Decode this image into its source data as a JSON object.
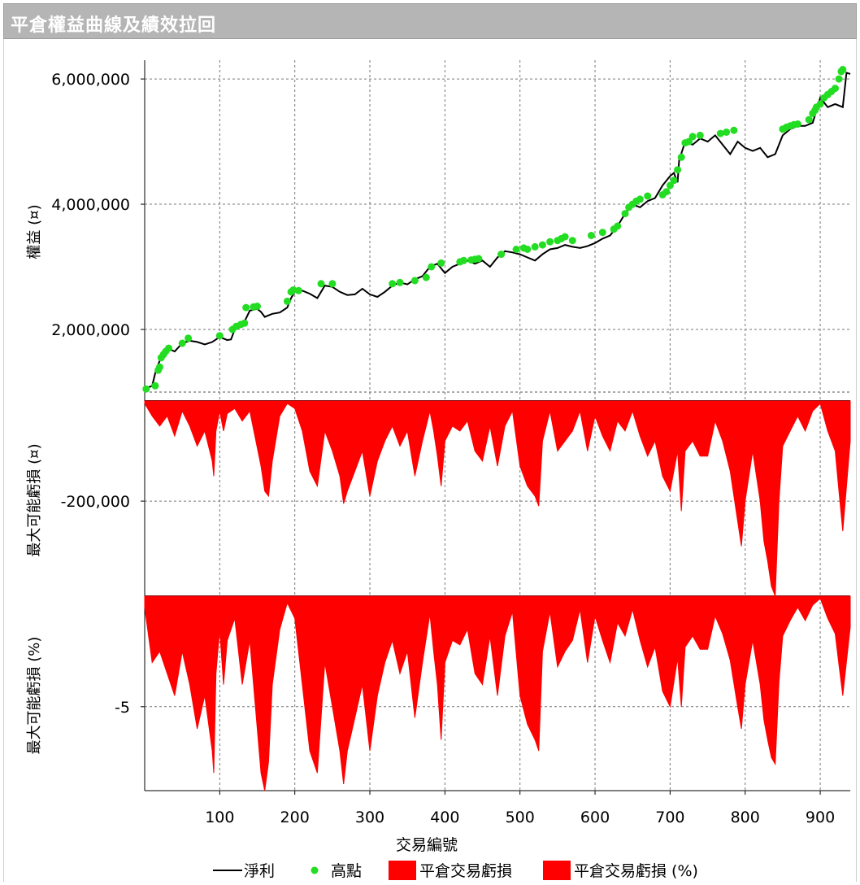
{
  "window": {
    "title": "平倉權益曲線及績效拉回"
  },
  "colors": {
    "equity_line": "#000000",
    "highs": "#22dd22",
    "drawdown": "#ff0000",
    "grid": "#777777"
  },
  "chart_data": {
    "type": "line",
    "x": {
      "label": "交易編號",
      "ticks": [
        100,
        200,
        300,
        400,
        500,
        600,
        700,
        800,
        900
      ],
      "range": [
        0,
        940
      ]
    },
    "legend": {
      "placement": "bottom",
      "items": [
        "淨利",
        "高點",
        "平倉交易虧損",
        "平倉交易虧損 (%)"
      ]
    },
    "panels": [
      {
        "name": "equity",
        "ylabel": "權益 (¤)",
        "ylim": [
          1000000,
          6300000
        ],
        "yticks": [
          {
            "value": 2000000,
            "label": "2,000,000"
          },
          {
            "value": 4000000,
            "label": "4,000,000"
          },
          {
            "value": 6000000,
            "label": "6,000,000"
          }
        ],
        "series": [
          {
            "name": "淨利",
            "type": "line",
            "x": [
              0,
              10,
              15,
              20,
              25,
              30,
              40,
              50,
              60,
              70,
              80,
              90,
              100,
              110,
              115,
              120,
              130,
              140,
              150,
              155,
              160,
              170,
              180,
              190,
              195,
              200,
              210,
              220,
              230,
              240,
              250,
              260,
              270,
              280,
              290,
              300,
              310,
              320,
              330,
              340,
              350,
              360,
              370,
              380,
              390,
              400,
              410,
              420,
              430,
              440,
              450,
              460,
              470,
              480,
              490,
              500,
              510,
              520,
              530,
              540,
              550,
              560,
              570,
              580,
              590,
              600,
              610,
              620,
              630,
              640,
              650,
              660,
              670,
              680,
              690,
              700,
              705,
              710,
              712,
              720,
              730,
              740,
              750,
              760,
              770,
              780,
              790,
              800,
              810,
              820,
              830,
              840,
              850,
              860,
              870,
              880,
              890,
              900,
              910,
              920,
              930,
              935,
              940
            ],
            "y": [
              1050000,
              1100000,
              1350000,
              1500000,
              1600000,
              1700000,
              1650000,
              1780000,
              1820000,
              1800000,
              1760000,
              1800000,
              1880000,
              1830000,
              1840000,
              2000000,
              2050000,
              2300000,
              2330000,
              2280000,
              2200000,
              2250000,
              2270000,
              2350000,
              2500000,
              2600000,
              2620000,
              2570000,
              2500000,
              2700000,
              2680000,
              2600000,
              2550000,
              2560000,
              2650000,
              2560000,
              2520000,
              2600000,
              2700000,
              2750000,
              2720000,
              2800000,
              2850000,
              3000000,
              3050000,
              2900000,
              3000000,
              3050000,
              3100000,
              3050000,
              3100000,
              3000000,
              3150000,
              3250000,
              3230000,
              3200000,
              3150000,
              3100000,
              3200000,
              3280000,
              3300000,
              3350000,
              3320000,
              3300000,
              3330000,
              3380000,
              3450000,
              3500000,
              3650000,
              3850000,
              4000000,
              3950000,
              4050000,
              4100000,
              4300000,
              4450000,
              4500000,
              4350000,
              4700000,
              5000000,
              4950000,
              5050000,
              5000000,
              5100000,
              4950000,
              4800000,
              5000000,
              4900000,
              4850000,
              4900000,
              4750000,
              4800000,
              5100000,
              5200000,
              5250000,
              5250000,
              5300000,
              5700000,
              5550000,
              5600000,
              5550000,
              6100000,
              6080000
            ]
          },
          {
            "name": "高點",
            "type": "scatter",
            "x": [
              2,
              14,
              18,
              20,
              22,
              25,
              28,
              32,
              50,
              58,
              100,
              117,
              122,
              128,
              133,
              135,
              145,
              150,
              190,
              195,
              198,
              205,
              235,
              250,
              330,
              340,
              360,
              375,
              382,
              395,
              420,
              425,
              435,
              440,
              445,
              475,
              495,
              505,
              510,
              520,
              530,
              540,
              550,
              555,
              560,
              570,
              595,
              610,
              625,
              630,
              640,
              645,
              650,
              655,
              660,
              670,
              690,
              695,
              700,
              705,
              710,
              715,
              720,
              725,
              730,
              740,
              767,
              775,
              785,
              850,
              855,
              860,
              865,
              870,
              885,
              890,
              893,
              895,
              900,
              905,
              910,
              915,
              920,
              925,
              928,
              930
            ],
            "y": [
              1050000,
              1100000,
              1350000,
              1400000,
              1550000,
              1600000,
              1650000,
              1700000,
              1780000,
              1860000,
              1900000,
              2000000,
              2050000,
              2080000,
              2100000,
              2350000,
              2360000,
              2370000,
              2450000,
              2600000,
              2630000,
              2620000,
              2730000,
              2730000,
              2730000,
              2750000,
              2780000,
              2830000,
              3000000,
              3060000,
              3080000,
              3100000,
              3110000,
              3120000,
              3130000,
              3200000,
              3280000,
              3300000,
              3280000,
              3320000,
              3350000,
              3400000,
              3420000,
              3450000,
              3480000,
              3420000,
              3500000,
              3550000,
              3600000,
              3650000,
              3850000,
              3950000,
              4000000,
              4050000,
              4080000,
              4130000,
              4150000,
              4200000,
              4300000,
              4380000,
              4550000,
              4750000,
              4980000,
              5000000,
              5080000,
              5100000,
              5130000,
              5150000,
              5180000,
              5200000,
              5230000,
              5250000,
              5270000,
              5280000,
              5350000,
              5450000,
              5500000,
              5550000,
              5600000,
              5700000,
              5750000,
              5800000,
              5850000,
              6000000,
              6120000,
              6150000
            ]
          }
        ]
      },
      {
        "name": "drawdown_abs",
        "ylabel": "最大可能虧損 (¤)",
        "ylim": [
          -390000,
          0
        ],
        "yticks": [
          {
            "value": -200000,
            "label": "-200,000"
          }
        ],
        "series": [
          {
            "name": "平倉交易虧損",
            "type": "area",
            "x": [
              0,
              10,
              20,
              30,
              40,
              50,
              60,
              70,
              80,
              90,
              92,
              95,
              100,
              105,
              110,
              120,
              130,
              140,
              155,
              160,
              165,
              170,
              180,
              190,
              200,
              210,
              220,
              230,
              240,
              250,
              260,
              265,
              270,
              280,
              290,
              300,
              310,
              320,
              330,
              340,
              350,
              360,
              370,
              380,
              385,
              390,
              395,
              400,
              410,
              420,
              430,
              440,
              450,
              460,
              470,
              480,
              490,
              500,
              510,
              520,
              525,
              530,
              540,
              550,
              560,
              570,
              580,
              590,
              600,
              610,
              620,
              630,
              640,
              650,
              660,
              670,
              680,
              690,
              700,
              710,
              715,
              720,
              730,
              740,
              750,
              760,
              770,
              780,
              790,
              795,
              800,
              810,
              820,
              825,
              830,
              835,
              840,
              845,
              850,
              860,
              870,
              880,
              890,
              900,
              910,
              920,
              925,
              930,
              940
            ],
            "y": [
              -5000,
              -30000,
              -50000,
              -30000,
              -70000,
              -20000,
              -50000,
              -90000,
              -60000,
              -120000,
              -150000,
              -60000,
              -20000,
              -60000,
              -25000,
              -15000,
              -40000,
              -20000,
              -130000,
              -180000,
              -190000,
              -120000,
              -30000,
              -5000,
              -15000,
              -60000,
              -140000,
              -170000,
              -60000,
              -100000,
              -150000,
              -205000,
              -180000,
              -140000,
              -100000,
              -190000,
              -120000,
              -80000,
              -50000,
              -90000,
              -60000,
              -150000,
              -80000,
              -20000,
              -60000,
              -110000,
              -170000,
              -80000,
              -50000,
              -60000,
              -40000,
              -100000,
              -120000,
              -50000,
              -130000,
              -50000,
              -20000,
              -130000,
              -170000,
              -190000,
              -210000,
              -80000,
              -20000,
              -100000,
              -80000,
              -60000,
              -20000,
              -100000,
              -30000,
              -70000,
              -100000,
              -40000,
              -60000,
              -20000,
              -70000,
              -110000,
              -80000,
              -150000,
              -180000,
              -100000,
              -220000,
              -100000,
              -80000,
              -110000,
              -110000,
              -40000,
              -80000,
              -140000,
              -240000,
              -290000,
              -200000,
              -100000,
              -200000,
              -280000,
              -320000,
              -370000,
              -390000,
              -200000,
              -90000,
              -60000,
              -30000,
              -60000,
              -20000,
              -5000,
              -60000,
              -100000,
              -180000,
              -260000,
              -80000
            ]
          }
        ]
      },
      {
        "name": "drawdown_pct",
        "ylabel": "最大可能虧損 (%)",
        "ylim": [
          -8.8,
          0
        ],
        "yticks": [
          {
            "value": -5,
            "label": "-5"
          }
        ],
        "series": [
          {
            "name": "平倉交易虧損 (%)",
            "type": "area",
            "x": [
              0,
              10,
              20,
              30,
              40,
              50,
              60,
              70,
              80,
              90,
              92,
              95,
              100,
              105,
              110,
              120,
              130,
              140,
              155,
              160,
              165,
              170,
              180,
              190,
              200,
              210,
              220,
              230,
              240,
              250,
              260,
              265,
              270,
              280,
              290,
              300,
              310,
              320,
              330,
              340,
              350,
              360,
              370,
              380,
              385,
              390,
              395,
              400,
              410,
              420,
              430,
              440,
              450,
              460,
              470,
              480,
              490,
              500,
              510,
              520,
              525,
              530,
              540,
              550,
              560,
              570,
              580,
              590,
              600,
              610,
              620,
              630,
              640,
              650,
              660,
              670,
              680,
              690,
              700,
              710,
              715,
              720,
              730,
              740,
              750,
              760,
              770,
              780,
              790,
              795,
              800,
              810,
              820,
              825,
              830,
              835,
              840,
              845,
              850,
              860,
              870,
              880,
              890,
              900,
              910,
              920,
              925,
              930,
              940
            ],
            "y": [
              -0.5,
              -3.0,
              -2.5,
              -3.5,
              -4.5,
              -2.5,
              -4.0,
              -6.0,
              -4.5,
              -7.0,
              -8.0,
              -3.5,
              -1.5,
              -4.0,
              -2.0,
              -1.0,
              -4.0,
              -2.0,
              -8.0,
              -8.8,
              -7.5,
              -4.0,
              -1.5,
              -0.3,
              -1.0,
              -4.0,
              -7.0,
              -8.0,
              -3.0,
              -5.0,
              -7.0,
              -8.5,
              -7.0,
              -5.5,
              -4.0,
              -7.0,
              -4.5,
              -3.0,
              -2.0,
              -3.5,
              -2.5,
              -5.5,
              -3.0,
              -0.8,
              -2.5,
              -4.0,
              -6.5,
              -3.0,
              -2.0,
              -2.2,
              -1.5,
              -3.5,
              -4.0,
              -1.8,
              -4.5,
              -1.8,
              -0.7,
              -4.5,
              -5.8,
              -6.5,
              -7.0,
              -2.5,
              -0.7,
              -3.2,
              -2.5,
              -2.0,
              -0.6,
              -3.0,
              -0.9,
              -2.0,
              -3.0,
              -1.2,
              -1.8,
              -0.6,
              -2.0,
              -3.2,
              -2.3,
              -4.3,
              -5.0,
              -2.8,
              -5.0,
              -2.3,
              -1.8,
              -2.4,
              -2.4,
              -0.9,
              -1.7,
              -2.9,
              -5.0,
              -6.0,
              -4.0,
              -2.0,
              -4.0,
              -5.6,
              -6.5,
              -7.3,
              -7.6,
              -3.9,
              -1.8,
              -1.1,
              -0.5,
              -1.1,
              -0.4,
              -0.1,
              -1.0,
              -1.7,
              -3.1,
              -4.5,
              -1.4
            ]
          }
        ]
      }
    ]
  }
}
